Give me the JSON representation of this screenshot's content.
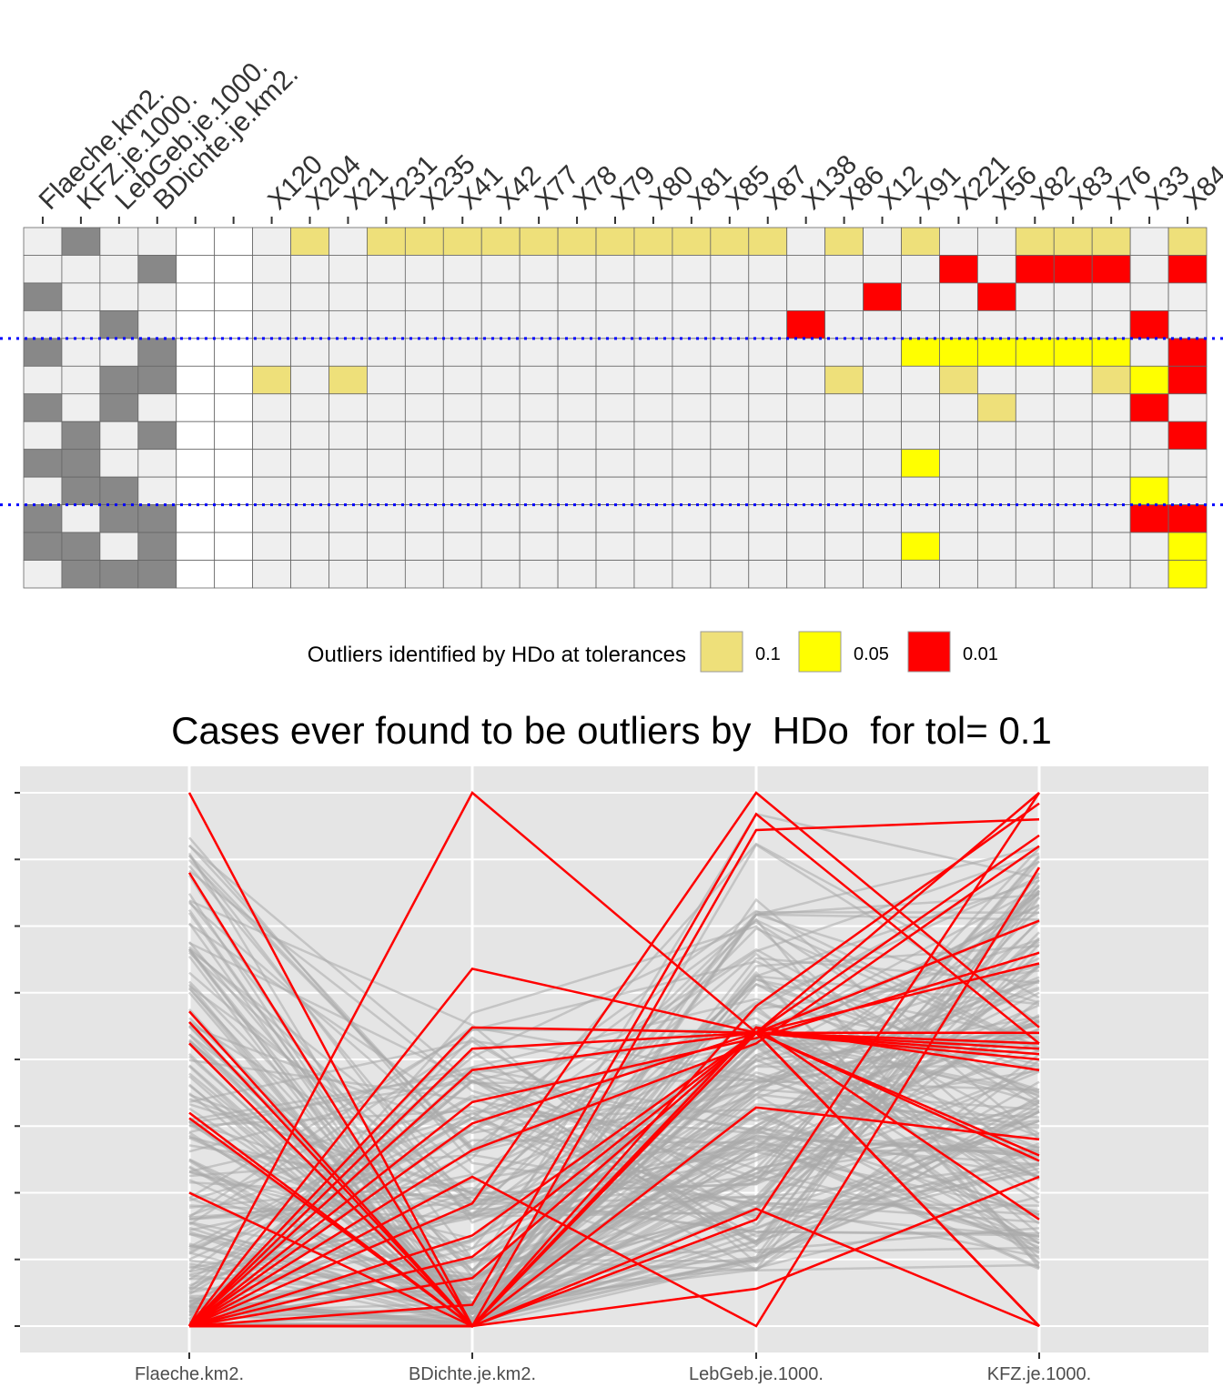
{
  "legend": {
    "title": "Outliers identified by HDo at tolerances",
    "items": [
      {
        "label": "0.1",
        "color": "#EEE07A"
      },
      {
        "label": "0.05",
        "color": "#FFFF00"
      },
      {
        "label": "0.01",
        "color": "#FF0000"
      }
    ]
  },
  "colors": {
    "tile_bg": "#EFEFEF",
    "variable_present": "#888888",
    "panel_bg": "#E5E5E5",
    "grid": "#FFFFFF",
    "highlight_line": "#FF0000",
    "other_line": "#AAAAAA",
    "separator": "#0000FF"
  },
  "chart_data": [
    {
      "type": "heatmap",
      "title": "",
      "variable_columns": [
        "Flaeche.km2.",
        "KFZ.je.1000.",
        "LebGeb.je.1000.",
        "BDichte.je.km2."
      ],
      "spacer_columns": 2,
      "case_columns": [
        "X120",
        "X204",
        "X21",
        "X231",
        "X235",
        "X41",
        "X42",
        "X77",
        "X78",
        "X79",
        "X80",
        "X81",
        "X85",
        "X87",
        "X138",
        "X86",
        "X12",
        "X91",
        "X221",
        "X56",
        "X82",
        "X83",
        "X76",
        "X33",
        "X84"
      ],
      "variable_subsets": [
        [
          0,
          1,
          0,
          0
        ],
        [
          0,
          0,
          0,
          1
        ],
        [
          1,
          0,
          0,
          0
        ],
        [
          0,
          0,
          1,
          0
        ],
        [
          1,
          0,
          0,
          1
        ],
        [
          0,
          0,
          1,
          1
        ],
        [
          1,
          0,
          1,
          0
        ],
        [
          0,
          1,
          0,
          1
        ],
        [
          1,
          1,
          0,
          0
        ],
        [
          0,
          1,
          1,
          0
        ],
        [
          1,
          0,
          1,
          1
        ],
        [
          1,
          1,
          0,
          1
        ],
        [
          0,
          1,
          1,
          1
        ]
      ],
      "outlier_cells": [
        {
          "row": 0,
          "case": "X204",
          "tol": "0.1"
        },
        {
          "row": 0,
          "case": "X231",
          "tol": "0.1"
        },
        {
          "row": 0,
          "case": "X235",
          "tol": "0.1"
        },
        {
          "row": 0,
          "case": "X41",
          "tol": "0.1"
        },
        {
          "row": 0,
          "case": "X42",
          "tol": "0.1"
        },
        {
          "row": 0,
          "case": "X77",
          "tol": "0.1"
        },
        {
          "row": 0,
          "case": "X78",
          "tol": "0.1"
        },
        {
          "row": 0,
          "case": "X79",
          "tol": "0.1"
        },
        {
          "row": 0,
          "case": "X80",
          "tol": "0.1"
        },
        {
          "row": 0,
          "case": "X81",
          "tol": "0.1"
        },
        {
          "row": 0,
          "case": "X85",
          "tol": "0.1"
        },
        {
          "row": 0,
          "case": "X87",
          "tol": "0.1"
        },
        {
          "row": 0,
          "case": "X86",
          "tol": "0.1"
        },
        {
          "row": 0,
          "case": "X91",
          "tol": "0.1"
        },
        {
          "row": 0,
          "case": "X82",
          "tol": "0.1"
        },
        {
          "row": 0,
          "case": "X83",
          "tol": "0.1"
        },
        {
          "row": 0,
          "case": "X76",
          "tol": "0.1"
        },
        {
          "row": 0,
          "case": "X84",
          "tol": "0.1"
        },
        {
          "row": 1,
          "case": "X221",
          "tol": "0.01"
        },
        {
          "row": 1,
          "case": "X82",
          "tol": "0.01"
        },
        {
          "row": 1,
          "case": "X83",
          "tol": "0.01"
        },
        {
          "row": 1,
          "case": "X76",
          "tol": "0.01"
        },
        {
          "row": 1,
          "case": "X84",
          "tol": "0.01"
        },
        {
          "row": 2,
          "case": "X12",
          "tol": "0.01"
        },
        {
          "row": 2,
          "case": "X56",
          "tol": "0.01"
        },
        {
          "row": 3,
          "case": "X138",
          "tol": "0.01"
        },
        {
          "row": 3,
          "case": "X33",
          "tol": "0.01"
        },
        {
          "row": 4,
          "case": "X91",
          "tol": "0.05"
        },
        {
          "row": 4,
          "case": "X221",
          "tol": "0.05"
        },
        {
          "row": 4,
          "case": "X56",
          "tol": "0.05"
        },
        {
          "row": 4,
          "case": "X82",
          "tol": "0.05"
        },
        {
          "row": 4,
          "case": "X83",
          "tol": "0.05"
        },
        {
          "row": 4,
          "case": "X76",
          "tol": "0.05"
        },
        {
          "row": 4,
          "case": "X84",
          "tol": "0.01"
        },
        {
          "row": 5,
          "case": "X120",
          "tol": "0.1"
        },
        {
          "row": 5,
          "case": "X21",
          "tol": "0.1"
        },
        {
          "row": 5,
          "case": "X86",
          "tol": "0.1"
        },
        {
          "row": 5,
          "case": "X221",
          "tol": "0.1"
        },
        {
          "row": 5,
          "case": "X76",
          "tol": "0.1"
        },
        {
          "row": 5,
          "case": "X33",
          "tol": "0.05"
        },
        {
          "row": 5,
          "case": "X84",
          "tol": "0.01"
        },
        {
          "row": 6,
          "case": "X56",
          "tol": "0.1"
        },
        {
          "row": 6,
          "case": "X33",
          "tol": "0.01"
        },
        {
          "row": 7,
          "case": "X84",
          "tol": "0.01"
        },
        {
          "row": 8,
          "case": "X91",
          "tol": "0.05"
        },
        {
          "row": 9,
          "case": "X33",
          "tol": "0.05"
        },
        {
          "row": 10,
          "case": "X33",
          "tol": "0.01"
        },
        {
          "row": 10,
          "case": "X84",
          "tol": "0.01"
        },
        {
          "row": 11,
          "case": "X91",
          "tol": "0.05"
        },
        {
          "row": 11,
          "case": "X84",
          "tol": "0.05"
        },
        {
          "row": 12,
          "case": "X84",
          "tol": "0.05"
        }
      ],
      "separators_after_rows": [
        3,
        9
      ]
    },
    {
      "type": "line",
      "title": "Cases ever found to be outliers by  HDo  for tol= 0.1",
      "categories": [
        "Flaeche.km2.",
        "BDichte.je.km2.",
        "LebGeb.je.1000.",
        "KFZ.je.1000."
      ],
      "ylim": [
        0,
        1
      ],
      "y_gridlines": [
        0,
        0.125,
        0.25,
        0.375,
        0.5,
        0.625,
        0.75,
        0.875,
        1
      ],
      "y_ticks_labelled": false,
      "highlighted_series": [
        [
          1.0,
          0.0,
          0.55,
          0.0
        ],
        [
          0.85,
          0.0,
          0.56,
          0.2
        ],
        [
          0.59,
          0.0,
          0.55,
          0.31
        ],
        [
          0.57,
          0.0,
          0.56,
          0.48
        ],
        [
          0.53,
          0.0,
          0.55,
          0.5
        ],
        [
          0.4,
          0.0,
          0.55,
          0.0
        ],
        [
          0.39,
          0.0,
          0.55,
          0.51
        ],
        [
          0.25,
          0.0,
          0.55,
          0.92
        ],
        [
          0.0,
          1.0,
          0.55,
          0.0
        ],
        [
          0.0,
          0.67,
          0.55,
          0.53
        ],
        [
          0.0,
          0.56,
          0.55,
          0.55
        ],
        [
          0.0,
          0.52,
          0.55,
          0.32
        ],
        [
          0.0,
          0.48,
          0.55,
          0.68
        ],
        [
          0.0,
          0.42,
          0.54,
          0.7
        ],
        [
          0.0,
          0.38,
          0.55,
          0.76
        ],
        [
          0.0,
          0.33,
          0.53,
          0.9
        ],
        [
          0.0,
          0.28,
          0.0,
          0.86
        ],
        [
          0.0,
          0.23,
          1.0,
          0.56
        ],
        [
          0.0,
          0.17,
          0.55,
          0.0
        ],
        [
          0.0,
          0.13,
          0.55,
          0.52
        ],
        [
          0.0,
          0.09,
          0.55,
          1.0
        ],
        [
          0.0,
          0.04,
          0.96,
          0.53
        ],
        [
          0.0,
          0.0,
          0.93,
          0.95
        ],
        [
          0.0,
          0.0,
          0.6,
          0.98
        ],
        [
          0.0,
          0.0,
          0.41,
          0.35
        ],
        [
          0.0,
          0.0,
          0.22,
          0.0
        ],
        [
          0.0,
          0.0,
          0.07,
          0.28
        ],
        [
          0.0,
          0.0,
          0.2,
          1.0
        ]
      ],
      "background_series_count": 180
    }
  ]
}
